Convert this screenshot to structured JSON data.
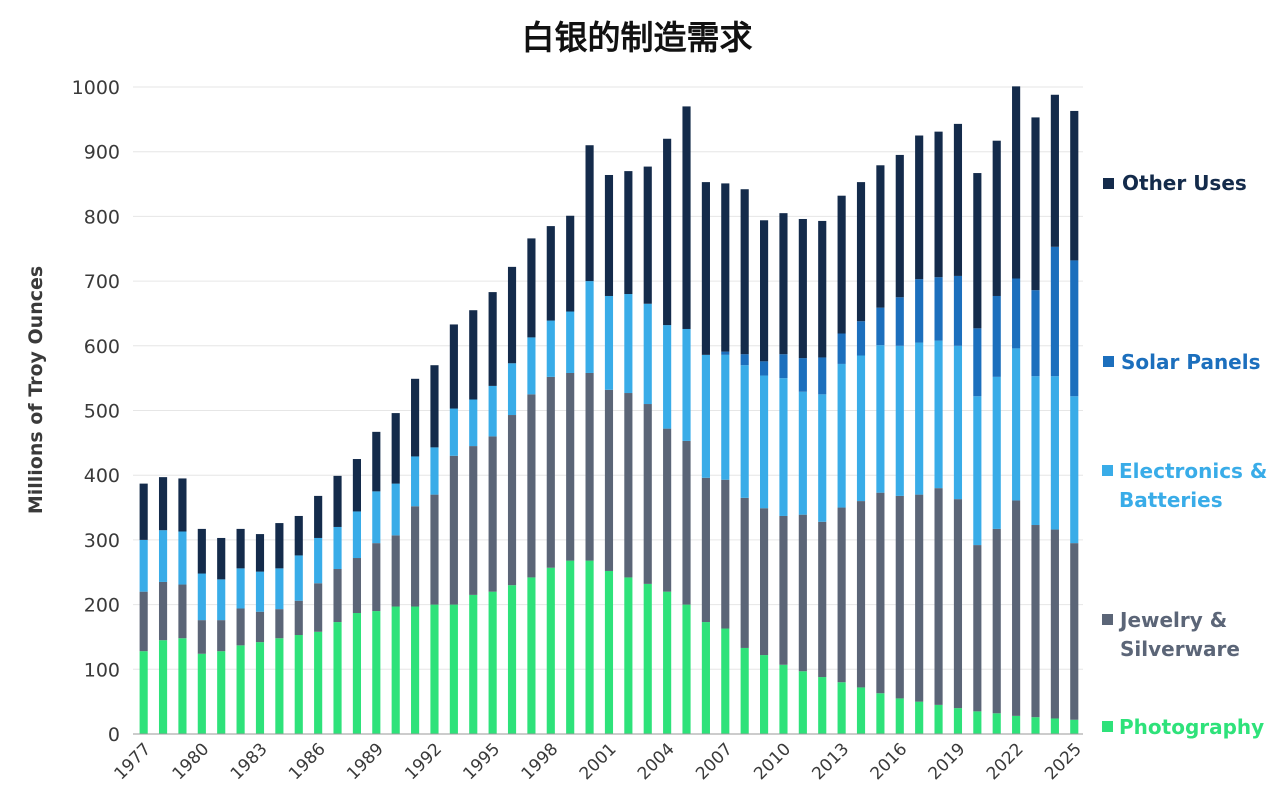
{
  "chart_data": {
    "type": "bar",
    "stacked": true,
    "title": "白银的制造需求",
    "xlabel": "",
    "ylabel": "Millions of Troy Ounces",
    "ylim": [
      0,
      1000
    ],
    "yticks": [
      0,
      100,
      200,
      300,
      400,
      500,
      600,
      700,
      800,
      900,
      1000
    ],
    "xtick_labels": [
      "1977",
      "1980",
      "1983",
      "1986",
      "1989",
      "1992",
      "1995",
      "1998",
      "2001",
      "2004",
      "2007",
      "2010",
      "2013",
      "2016",
      "2019",
      "2022",
      "2025"
    ],
    "grid": true,
    "legend_position": "right",
    "categories": [
      "1977",
      "1978",
      "1979",
      "1980",
      "1981",
      "1982",
      "1983",
      "1984",
      "1985",
      "1986",
      "1987",
      "1988",
      "1989",
      "1990",
      "1991",
      "1992",
      "1993",
      "1994",
      "1995",
      "1996",
      "1997",
      "1998",
      "1999",
      "2000",
      "2001",
      "2002",
      "2003",
      "2004",
      "2005",
      "2006",
      "2007",
      "2008",
      "2009",
      "2010",
      "2011",
      "2012",
      "2013",
      "2014",
      "2015",
      "2016",
      "2017",
      "2018",
      "2019",
      "2020",
      "2021",
      "2022",
      "2023",
      "2024",
      "2025"
    ],
    "series": [
      {
        "name": "Photography",
        "color": "#2ee27a",
        "values": [
          128,
          145,
          148,
          124,
          128,
          137,
          142,
          148,
          153,
          158,
          173,
          187,
          190,
          197,
          197,
          200,
          200,
          215,
          220,
          230,
          242,
          257,
          268,
          268,
          252,
          242,
          232,
          220,
          200,
          173,
          163,
          133,
          122,
          107,
          97,
          88,
          80,
          72,
          63,
          55,
          50,
          45,
          40,
          35,
          32,
          28,
          26,
          24,
          22
        ]
      },
      {
        "name": "Jewelry & Silverware",
        "color": "#5b6577",
        "values": [
          92,
          90,
          83,
          52,
          48,
          57,
          47,
          45,
          53,
          75,
          82,
          85,
          105,
          110,
          155,
          170,
          230,
          230,
          240,
          263,
          283,
          295,
          290,
          290,
          280,
          285,
          278,
          252,
          253,
          223,
          230,
          232,
          227,
          230,
          242,
          240,
          270,
          288,
          310,
          313,
          320,
          335,
          323,
          257,
          285,
          333,
          297,
          292,
          273
        ]
      },
      {
        "name": "Electronics & Batteries",
        "color": "#39ace8",
        "values": [
          80,
          80,
          82,
          72,
          63,
          62,
          62,
          63,
          70,
          70,
          65,
          72,
          80,
          80,
          77,
          73,
          73,
          72,
          78,
          80,
          88,
          87,
          95,
          142,
          145,
          153,
          155,
          160,
          173,
          190,
          193,
          205,
          205,
          213,
          190,
          197,
          222,
          225,
          228,
          232,
          235,
          228,
          237,
          230,
          235,
          235,
          230,
          237,
          227
        ]
      },
      {
        "name": "Solar Panels",
        "color": "#1c6fbd",
        "values": [
          0,
          0,
          0,
          0,
          0,
          0,
          0,
          0,
          0,
          0,
          0,
          0,
          0,
          0,
          0,
          0,
          0,
          0,
          0,
          0,
          0,
          0,
          0,
          0,
          0,
          0,
          0,
          0,
          0,
          0,
          5,
          17,
          22,
          37,
          52,
          57,
          47,
          53,
          58,
          75,
          98,
          98,
          108,
          105,
          125,
          108,
          133,
          200,
          210
        ]
      },
      {
        "name": "Other Uses",
        "color": "#142b4b",
        "values": [
          87,
          82,
          82,
          69,
          64,
          61,
          58,
          70,
          61,
          65,
          79,
          81,
          92,
          109,
          120,
          127,
          130,
          138,
          145,
          149,
          153,
          146,
          148,
          210,
          187,
          190,
          212,
          288,
          344,
          267,
          260,
          255,
          218,
          218,
          215,
          211,
          213,
          215,
          220,
          220,
          222,
          225,
          235,
          240,
          240,
          297,
          267,
          235,
          231
        ]
      }
    ]
  },
  "legend": {
    "items": [
      {
        "key": "other",
        "line1": "Other Uses",
        "line2": "",
        "color": "#142b4b"
      },
      {
        "key": "solar",
        "line1": "Solar Panels",
        "line2": "",
        "color": "#1c6fbd"
      },
      {
        "key": "electronics",
        "line1": "Electronics &",
        "line2": "Batteries",
        "color": "#39ace8"
      },
      {
        "key": "jewelry",
        "line1": "Jewelry &",
        "line2": "Silverware",
        "color": "#5b6577"
      },
      {
        "key": "photography",
        "line1": "Photography",
        "line2": "",
        "color": "#2ee27a"
      }
    ]
  }
}
